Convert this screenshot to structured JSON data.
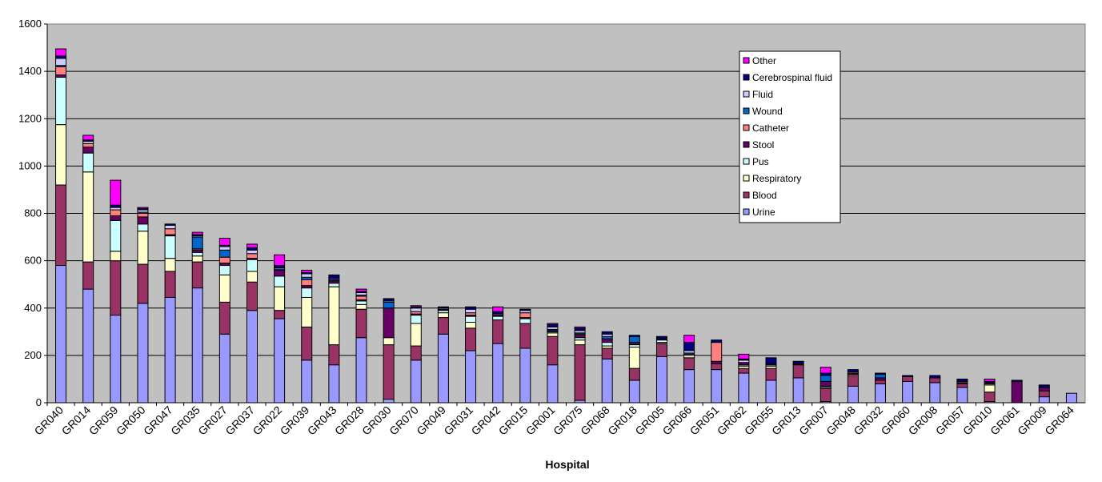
{
  "chart_data": {
    "type": "bar",
    "stacked": true,
    "title": "",
    "xlabel": "Hospital",
    "ylabel": "",
    "ylim": [
      0,
      1600
    ],
    "yticks": [
      0,
      200,
      400,
      600,
      800,
      1000,
      1200,
      1400,
      1600
    ],
    "grid": true,
    "legend_position": "top-right",
    "categories": [
      "GR040",
      "GR014",
      "GR059",
      "GR050",
      "GR047",
      "GR035",
      "GR027",
      "GR037",
      "GR022",
      "GR039",
      "GR043",
      "GR028",
      "GR030",
      "GR070",
      "GR049",
      "GR031",
      "GR042",
      "GR015",
      "GR001",
      "GR075",
      "GR068",
      "GR018",
      "GR005",
      "GR066",
      "GR051",
      "GR062",
      "GR055",
      "GR013",
      "GR007",
      "GR048",
      "GR032",
      "GR060",
      "GR008",
      "GR057",
      "GR010",
      "GR061",
      "GR009",
      "GR064"
    ],
    "series": [
      {
        "name": "Urine",
        "color": "#9999ff",
        "values": [
          580,
          480,
          370,
          420,
          445,
          485,
          290,
          390,
          355,
          180,
          160,
          275,
          15,
          180,
          290,
          220,
          250,
          230,
          160,
          10,
          185,
          95,
          195,
          140,
          140,
          125,
          95,
          105,
          5,
          70,
          80,
          90,
          85,
          65,
          5,
          0,
          25,
          40
        ]
      },
      {
        "name": "Blood",
        "color": "#993366",
        "values": [
          340,
          115,
          230,
          165,
          110,
          110,
          135,
          120,
          35,
          140,
          85,
          120,
          230,
          60,
          70,
          95,
          100,
          105,
          120,
          235,
          45,
          50,
          55,
          50,
          25,
          20,
          50,
          55,
          55,
          45,
          15,
          20,
          20,
          15,
          40,
          0,
          25,
          0
        ]
      },
      {
        "name": "Respiratory",
        "color": "#ffffcc",
        "values": [
          255,
          380,
          40,
          140,
          55,
          25,
          115,
          45,
          100,
          125,
          245,
          20,
          30,
          95,
          20,
          25,
          0,
          0,
          15,
          20,
          10,
          90,
          5,
          10,
          0,
          10,
          10,
          0,
          5,
          5,
          0,
          0,
          0,
          0,
          30,
          0,
          0,
          0
        ]
      },
      {
        "name": "Pus",
        "color": "#ccffff",
        "values": [
          200,
          80,
          130,
          30,
          95,
          15,
          40,
          50,
          45,
          40,
          15,
          15,
          0,
          35,
          10,
          25,
          15,
          20,
          5,
          10,
          15,
          10,
          10,
          5,
          0,
          5,
          5,
          0,
          5,
          0,
          0,
          0,
          0,
          0,
          5,
          0,
          0,
          0
        ]
      },
      {
        "name": "Stool",
        "color": "#660066",
        "values": [
          10,
          25,
          20,
          30,
          5,
          10,
          10,
          5,
          25,
          10,
          10,
          5,
          125,
          5,
          5,
          5,
          5,
          5,
          5,
          10,
          15,
          5,
          5,
          0,
          10,
          10,
          5,
          5,
          20,
          5,
          10,
          0,
          0,
          5,
          5,
          90,
          15,
          0
        ]
      },
      {
        "name": "Catheter",
        "color": "#ff8080",
        "values": [
          35,
          15,
          25,
          15,
          25,
          5,
          25,
          20,
          0,
          25,
          0,
          15,
          0,
          10,
          0,
          10,
          0,
          20,
          0,
          5,
          0,
          5,
          0,
          0,
          80,
          0,
          0,
          0,
          0,
          5,
          0,
          0,
          0,
          5,
          0,
          0,
          0,
          0
        ]
      },
      {
        "name": "Wound",
        "color": "#0066cc",
        "values": [
          5,
          0,
          0,
          5,
          0,
          50,
          30,
          0,
          5,
          10,
          5,
          5,
          25,
          0,
          0,
          0,
          0,
          0,
          5,
          5,
          10,
          25,
          0,
          5,
          0,
          0,
          0,
          0,
          25,
          0,
          15,
          0,
          0,
          0,
          0,
          0,
          0,
          0
        ]
      },
      {
        "name": "Fluid",
        "color": "#ccccff",
        "values": [
          30,
          10,
          10,
          10,
          15,
          5,
          15,
          15,
          5,
          15,
          5,
          10,
          5,
          15,
          5,
          15,
          5,
          10,
          10,
          10,
          10,
          0,
          0,
          10,
          0,
          10,
          0,
          0,
          0,
          0,
          0,
          0,
          0,
          0,
          0,
          0,
          0,
          0
        ]
      },
      {
        "name": "Cerebrospinal fluid",
        "color": "#000080",
        "values": [
          10,
          5,
          10,
          5,
          5,
          5,
          5,
          10,
          10,
          5,
          15,
          5,
          10,
          5,
          5,
          10,
          10,
          5,
          10,
          10,
          10,
          5,
          10,
          35,
          10,
          5,
          25,
          10,
          10,
          10,
          5,
          5,
          10,
          10,
          5,
          5,
          10,
          0
        ]
      },
      {
        "name": "Other",
        "color": "#ff00ff",
        "values": [
          30,
          20,
          105,
          5,
          0,
          10,
          30,
          15,
          45,
          10,
          0,
          10,
          0,
          5,
          0,
          0,
          20,
          0,
          5,
          5,
          0,
          0,
          0,
          30,
          0,
          20,
          0,
          0,
          25,
          0,
          0,
          0,
          0,
          0,
          10,
          0,
          0,
          0
        ]
      }
    ]
  }
}
